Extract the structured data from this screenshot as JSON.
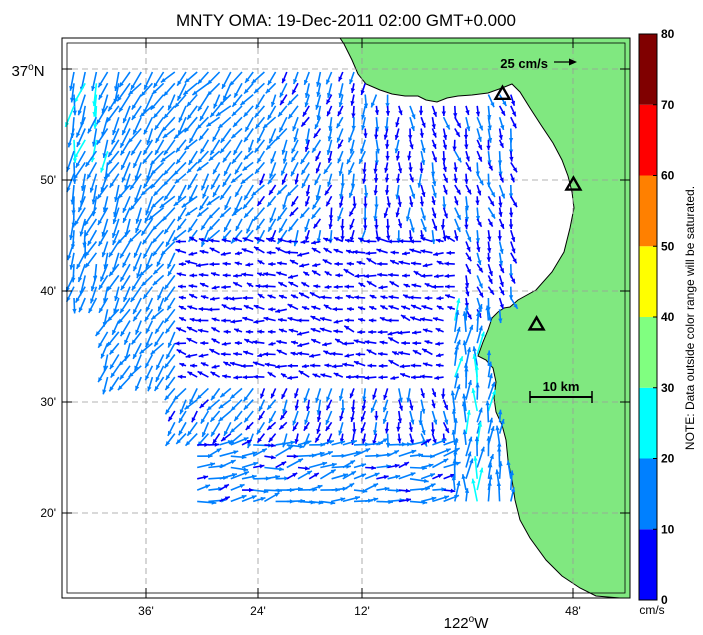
{
  "title": "MNTY OMA: 19-Dec-2011 02:00 GMT+0.000",
  "axes": {
    "lat_ticks": [
      {
        "lat": 37.0,
        "label": "37",
        "deg": "o",
        "hemi": "N"
      },
      {
        "lat": 36.8333,
        "label": "50'"
      },
      {
        "lat": 36.6667,
        "label": "40'"
      },
      {
        "lat": 36.5,
        "label": "30'"
      },
      {
        "lat": 36.3333,
        "label": "20'"
      }
    ],
    "lon_ticks": [
      {
        "lon": -122.4,
        "label": "36'"
      },
      {
        "lon": -122.2,
        "label": "24'"
      },
      {
        "lon": -122.0,
        "label": "12'"
      },
      {
        "lon": -121.8,
        "label": "48'"
      }
    ],
    "lon_center": {
      "label": "122",
      "deg": "o",
      "hemi": "W"
    },
    "lat_range": [
      36.2,
      37.033
    ],
    "lon_range": [
      -122.533,
      -121.7
    ]
  },
  "scale_arrow": {
    "label": "25 cm/s",
    "speed": 25
  },
  "scale_bar": {
    "label": "10 km"
  },
  "sites": [
    {
      "lat": 36.95,
      "lon": -121.887
    },
    {
      "lat": 36.815,
      "lon": -121.783
    },
    {
      "lat": 36.607,
      "lon": -121.837
    }
  ],
  "colorbar": {
    "bins": [
      {
        "min": 0,
        "max": 10,
        "color": "#0000ff"
      },
      {
        "min": 10,
        "max": 20,
        "color": "#0080ff"
      },
      {
        "min": 20,
        "max": 30,
        "color": "#00ffff"
      },
      {
        "min": 30,
        "max": 40,
        "color": "#80ff80"
      },
      {
        "min": 40,
        "max": 50,
        "color": "#ffff00"
      },
      {
        "min": 50,
        "max": 60,
        "color": "#ff8000"
      },
      {
        "min": 60,
        "max": 70,
        "color": "#ff0000"
      },
      {
        "min": 70,
        "max": 80,
        "color": "#800000"
      }
    ],
    "tick_labels": [
      "0",
      "10",
      "20",
      "30",
      "40",
      "50",
      "60",
      "70",
      "80"
    ],
    "unit": "cm/s",
    "note": "NOTE: Data outside color range will be saturated."
  },
  "colors": {
    "land": "#80e880",
    "coast": "#000000",
    "grid": "#999999"
  }
}
